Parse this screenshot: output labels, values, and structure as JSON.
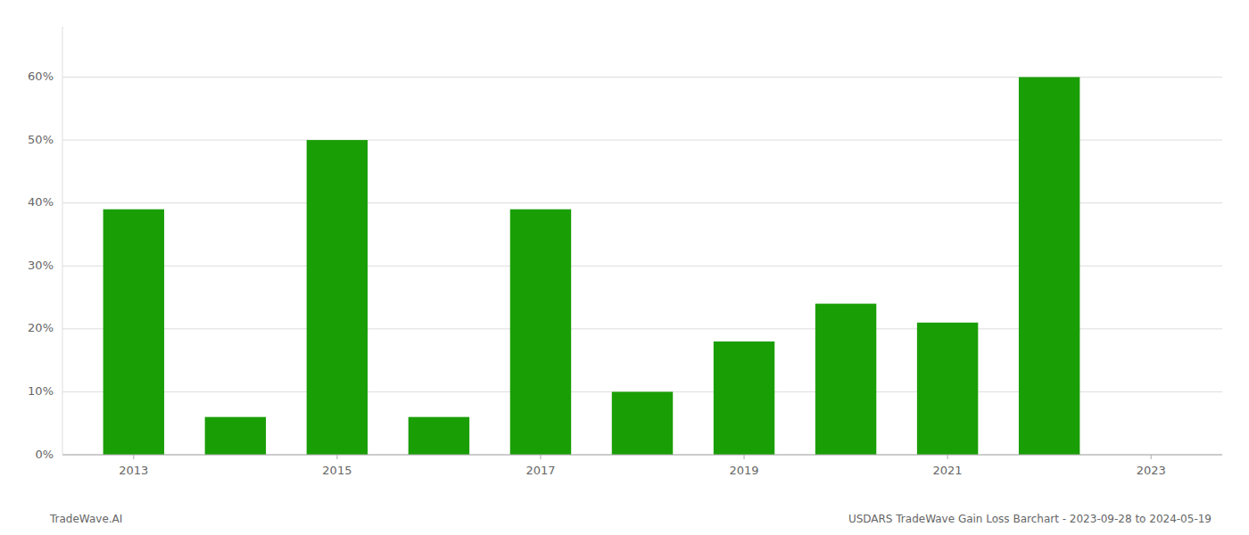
{
  "chart_data": {
    "type": "bar",
    "x": [
      2013,
      2014,
      2015,
      2016,
      2017,
      2018,
      2019,
      2020,
      2021,
      2022,
      2023
    ],
    "values": [
      0.39,
      0.06,
      0.5,
      0.06,
      0.39,
      0.1,
      0.18,
      0.24,
      0.21,
      0.6,
      0.0
    ],
    "color": "#1a9e06",
    "xlim": [
      2012.3,
      2023.7
    ],
    "xticks": [
      2013,
      2015,
      2017,
      2019,
      2021,
      2023
    ],
    "ylim": [
      0.0,
      0.68
    ],
    "yticks": [
      {
        "value": 0.0,
        "label": "0%"
      },
      {
        "value": 0.1,
        "label": "10%"
      },
      {
        "value": 0.2,
        "label": "20%"
      },
      {
        "value": 0.3,
        "label": "30%"
      },
      {
        "value": 0.4,
        "label": "40%"
      },
      {
        "value": 0.5,
        "label": "50%"
      },
      {
        "value": 0.6,
        "label": "60%"
      }
    ],
    "grid": true,
    "annotations": [
      "TradeWave.AI",
      "USDARS TradeWave Gain Loss Barchart - 2023-09-28 to 2024-05-19"
    ]
  }
}
